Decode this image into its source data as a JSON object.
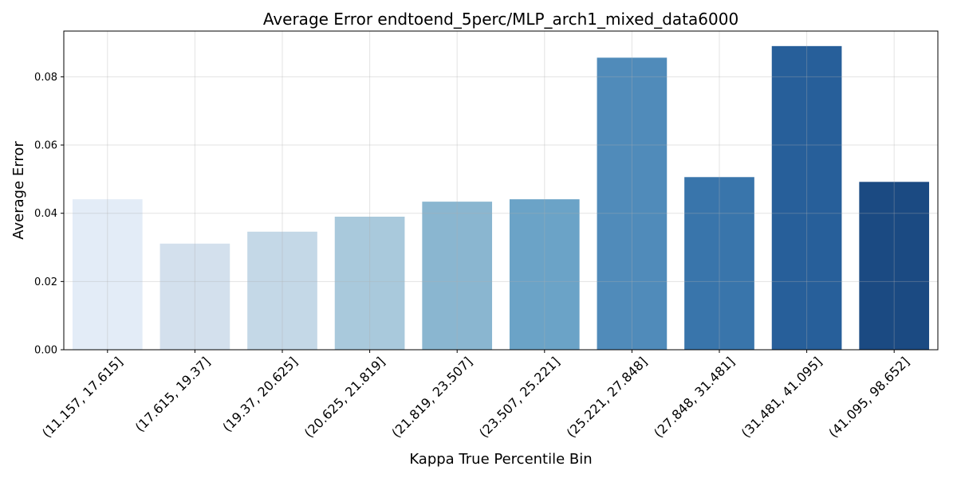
{
  "chart_data": {
    "type": "bar",
    "title": "Average Error endtoend_5perc/MLP_arch1_mixed_data6000",
    "xlabel": "Kappa True Percentile Bin",
    "ylabel": "Average Error",
    "categories": [
      "(11.157, 17.615]",
      "(17.615, 19.37]",
      "(19.37, 20.625]",
      "(20.625, 21.819]",
      "(21.819, 23.507]",
      "(23.507, 25.221]",
      "(25.221, 27.848]",
      "(27.848, 31.481]",
      "(31.481, 41.095]",
      "(41.095, 98.652]"
    ],
    "values": [
      0.0441,
      0.0311,
      0.0346,
      0.039,
      0.0434,
      0.0441,
      0.0856,
      0.0506,
      0.089,
      0.0492
    ],
    "colors": [
      "#e3ecf7",
      "#d3e0ed",
      "#c4d8e7",
      "#a9c9dc",
      "#8ab6d0",
      "#6ba3c7",
      "#508bba",
      "#3975ab",
      "#275f9a",
      "#1b4a82"
    ],
    "ylim": [
      0,
      0.0934
    ],
    "yticks": [
      0.0,
      0.02,
      0.04,
      0.06,
      0.08
    ],
    "ytick_labels": [
      "0.00",
      "0.02",
      "0.04",
      "0.06",
      "0.08"
    ],
    "grid": true,
    "legend": "none"
  }
}
